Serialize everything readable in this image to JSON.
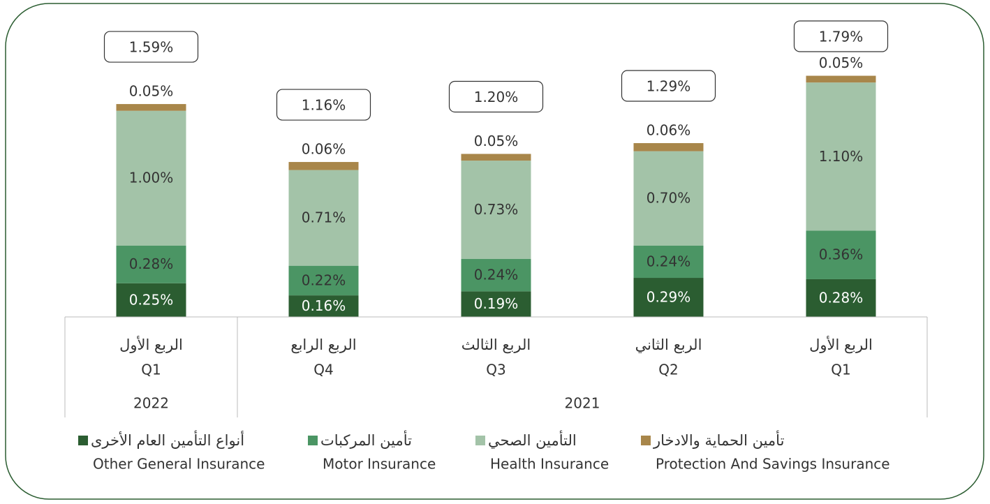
{
  "chart_data": {
    "type": "stacked-bar",
    "categories": [
      "Q1",
      "Q4",
      "Q3",
      "Q2",
      "Q1"
    ],
    "categories_ar": [
      "الربع الأول",
      "الربع الرابع",
      "الربع الثالث",
      "الربع الثاني",
      "الربع الأول"
    ],
    "groups": [
      {
        "label": "2022",
        "size": 1
      },
      {
        "label": "2021",
        "size": 4
      }
    ],
    "series": [
      {
        "name": "Other General Insurance",
        "name_ar": "أنواع التأمين العام الأخرى",
        "color": "#2b5d31",
        "values": [
          0.25,
          0.16,
          0.19,
          0.29,
          0.28
        ],
        "value_labels": [
          "0.25%",
          "0.16%",
          "0.19%",
          "0.29%",
          "0.28%"
        ]
      },
      {
        "name": "Motor Insurance",
        "name_ar": "تأمين المركبات",
        "color": "#4b9564",
        "values": [
          0.28,
          0.22,
          0.24,
          0.24,
          0.36
        ],
        "value_labels": [
          "0.28%",
          "0.22%",
          "0.24%",
          "0.24%",
          "0.36%"
        ]
      },
      {
        "name": "Health Insurance",
        "name_ar": "التأمين الصحي",
        "color": "#a3c3a8",
        "values": [
          1.0,
          0.71,
          0.73,
          0.7,
          1.1
        ],
        "value_labels": [
          "1.00%",
          "0.71%",
          "0.73%",
          "0.70%",
          "1.10%"
        ]
      },
      {
        "name": "Protection And Savings Insurance",
        "name_ar": "تأمين الحماية والادخار",
        "color": "#a8864a",
        "values": [
          0.05,
          0.06,
          0.05,
          0.06,
          0.05
        ],
        "value_labels": [
          "0.05%",
          "0.06%",
          "0.05%",
          "0.06%",
          "0.05%"
        ]
      }
    ],
    "totals": [
      1.59,
      1.16,
      1.2,
      1.29,
      1.79
    ],
    "total_labels": [
      "1.59%",
      "1.16%",
      "1.20%",
      "1.29%",
      "1.79%"
    ]
  }
}
